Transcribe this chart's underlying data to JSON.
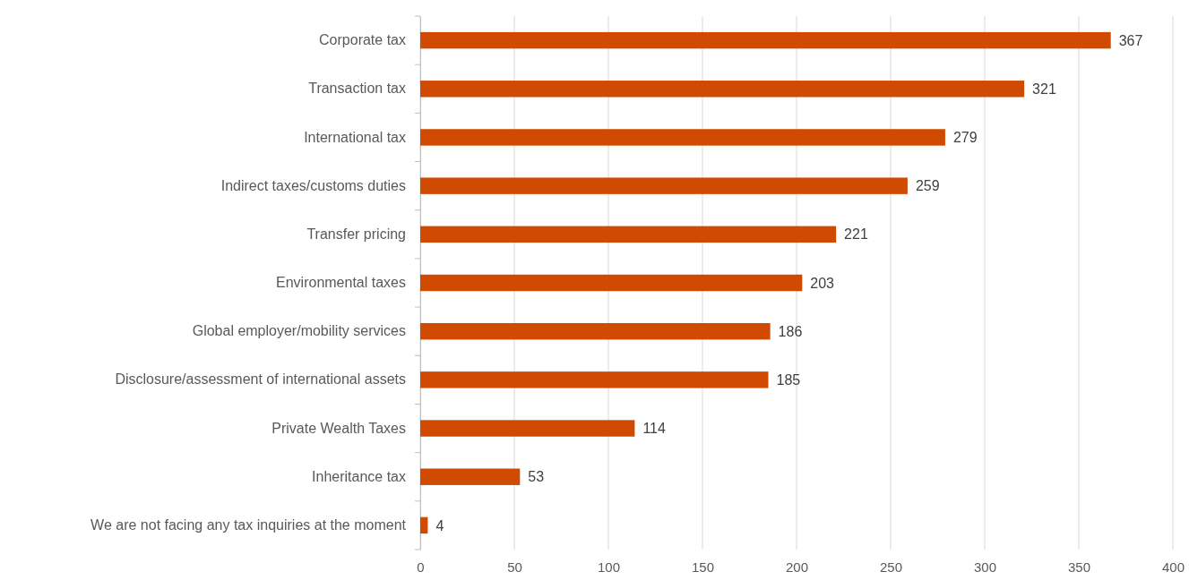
{
  "chart_data": {
    "type": "bar",
    "orientation": "horizontal",
    "categories": [
      "Corporate tax",
      "Transaction tax",
      "International tax",
      "Indirect taxes/customs duties",
      "Transfer pricing",
      "Environmental taxes",
      "Global employer/mobility services",
      "Disclosure/assessment of international assets",
      "Private Wealth Taxes",
      "Inheritance tax",
      "We are not facing any tax inquiries at the moment"
    ],
    "values": [
      367,
      321,
      279,
      259,
      221,
      203,
      186,
      185,
      114,
      53,
      4
    ],
    "color": "#d04a02",
    "xlim": [
      0,
      400
    ],
    "xticks": [
      0,
      50,
      100,
      150,
      200,
      250,
      300,
      350,
      400
    ],
    "grid": "x",
    "data_labels": true
  }
}
